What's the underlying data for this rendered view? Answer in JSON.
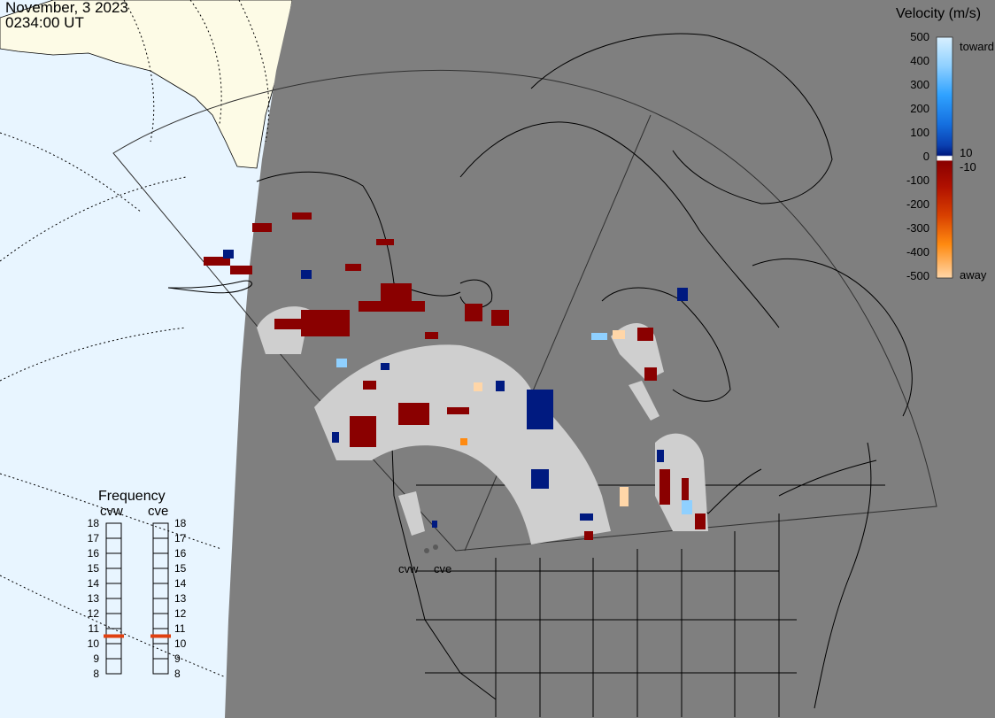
{
  "header": {
    "date": "November, 3 2023",
    "time": "0234:00 UT"
  },
  "colors": {
    "ocean": "#e8f5ff",
    "land": "#fdfbe6",
    "night": "#7f7f7f",
    "ground_scatter": "#cfcfcf",
    "ground_scatter_dark": "#9a9a9a"
  },
  "legend": {
    "title": "Velocity (m/s)",
    "labels": [
      "500",
      "400",
      "300",
      "200",
      "100",
      "0",
      "-100",
      "-200",
      "-300",
      "-400",
      "-500"
    ],
    "toward": "toward",
    "away": "away",
    "small_pos": "10",
    "small_neg": "-10",
    "stops": [
      "#d8f0ff",
      "#8fd0ff",
      "#2fa2ff",
      "#1570e0",
      "#0a3fb0",
      "#001a80",
      "#ffffff",
      "#8a0000",
      "#b01000",
      "#d84000",
      "#ff8a10",
      "#ffd6a8"
    ]
  },
  "frequency": {
    "title": "Frequency",
    "radars": [
      "cvw",
      "cve"
    ],
    "levels": [
      "18",
      "17",
      "16",
      "15",
      "14",
      "13",
      "12",
      "11",
      "10",
      "9",
      "8"
    ],
    "values": [
      10.5,
      10.5
    ]
  },
  "stations": [
    "cvw",
    "cve"
  ]
}
